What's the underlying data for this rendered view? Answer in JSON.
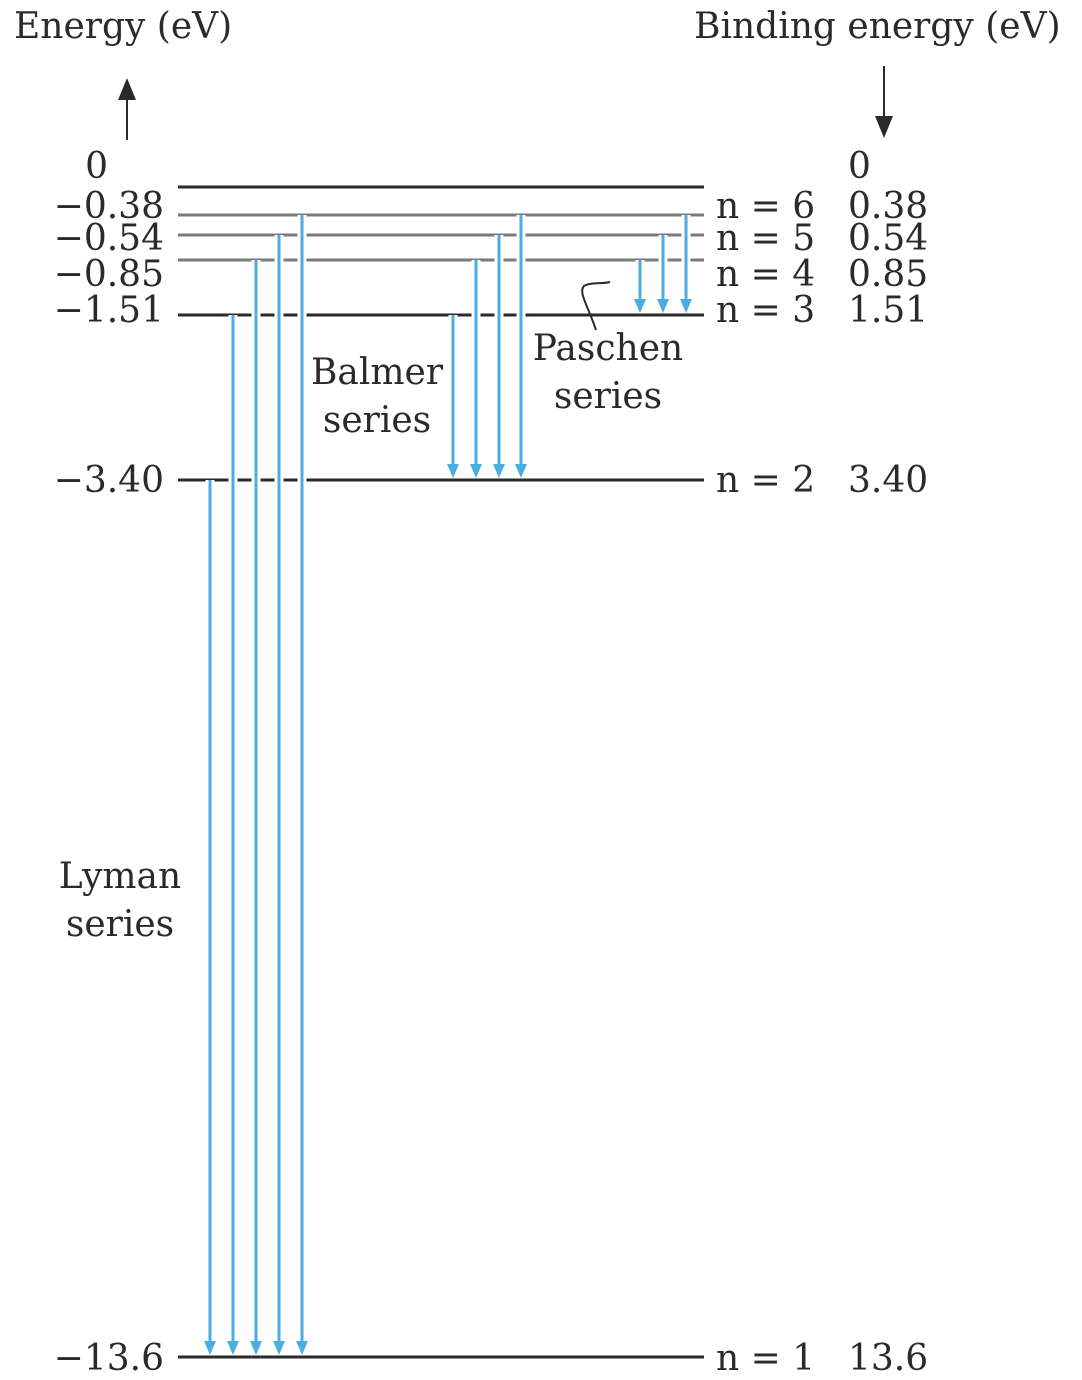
{
  "header": {
    "left_axis_title": "Energy (eV)",
    "right_axis_title": "Binding energy (eV)"
  },
  "levels": [
    {
      "n": "∞",
      "energy": "0",
      "binding": "0",
      "n_label": ""
    },
    {
      "n": "6",
      "energy": "−0.38",
      "binding": "0.38",
      "n_label": "n = 6"
    },
    {
      "n": "5",
      "energy": "−0.54",
      "binding": "0.54",
      "n_label": "n = 5"
    },
    {
      "n": "4",
      "energy": "−0.85",
      "binding": "0.85",
      "n_label": "n = 4"
    },
    {
      "n": "3",
      "energy": "−1.51",
      "binding": "1.51",
      "n_label": "n = 3"
    },
    {
      "n": "2",
      "energy": "−3.40",
      "binding": "3.40",
      "n_label": "n = 2"
    },
    {
      "n": "1",
      "energy": "−13.6",
      "binding": "13.6",
      "n_label": "n = 1"
    }
  ],
  "series": {
    "lyman": {
      "line1": "Lyman",
      "line2": "series",
      "to_n": 1,
      "from_n": [
        2,
        3,
        4,
        5,
        6
      ]
    },
    "balmer": {
      "line1": "Balmer",
      "line2": "series",
      "to_n": 2,
      "from_n": [
        3,
        4,
        5,
        6
      ]
    },
    "paschen": {
      "line1": "Paschen",
      "line2": "series",
      "to_n": 3,
      "from_n": [
        4,
        5,
        6
      ]
    }
  },
  "colors": {
    "arrow": "#4aaee3",
    "level_dark": "#2a2a2a",
    "level_light": "#7a7a7a",
    "text": "#2a2a2a"
  }
}
